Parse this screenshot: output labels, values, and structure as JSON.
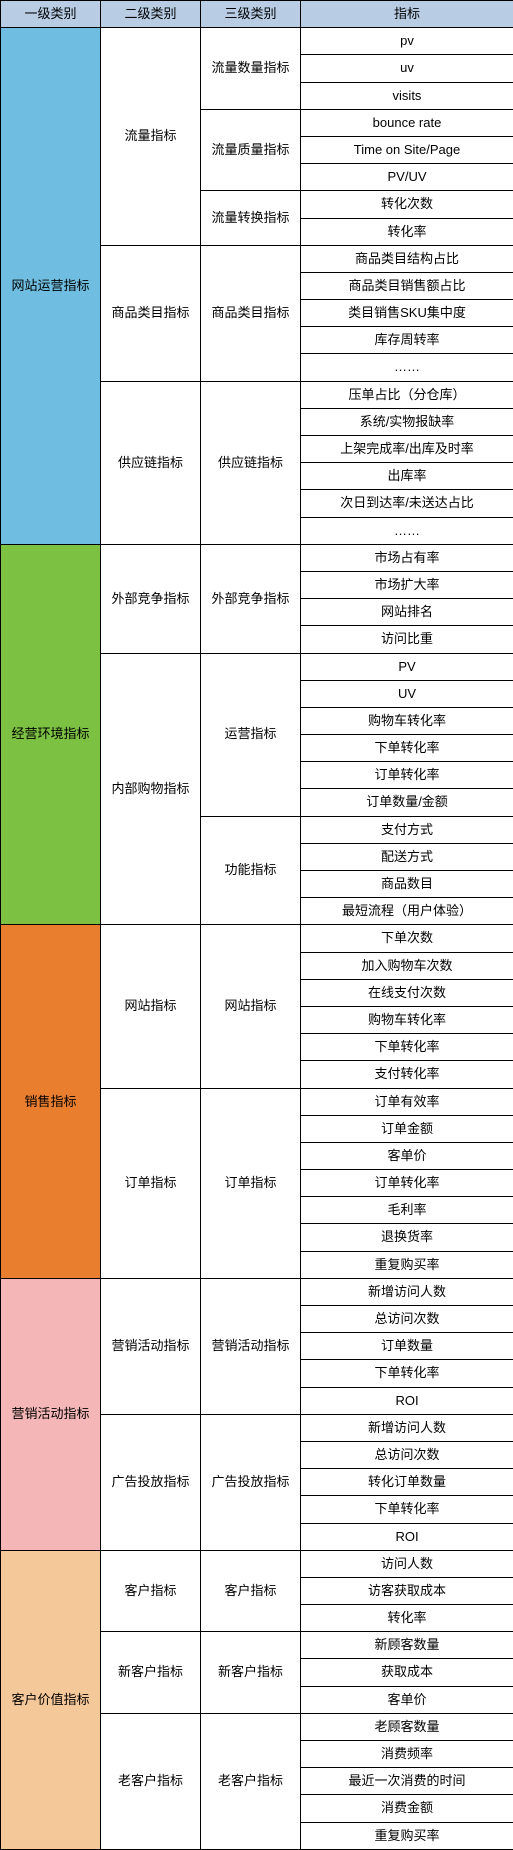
{
  "headers": {
    "c1": "一级类别",
    "c2": "二级类别",
    "c3": "三级类别",
    "c4": "指标"
  },
  "colors": {
    "header_bg": "#b8cce4",
    "c1_bg": "#6fbde0",
    "c2_bg": "#7cc142",
    "c3_bg": "#e97e2e",
    "c4_bg": "#f4b6b6",
    "c5_bg": "#f5c89a",
    "cell_bg": "#ffffff"
  },
  "categories": [
    {
      "name": "网站运营指标",
      "color_key": "c1_bg",
      "subs": [
        {
          "name": "流量指标",
          "thirds": [
            {
              "name": "流量数量指标",
              "metrics": [
                "pv",
                "uv",
                "visits"
              ]
            },
            {
              "name": "流量质量指标",
              "metrics": [
                "bounce rate",
                "Time on Site/Page",
                "PV/UV"
              ]
            },
            {
              "name": "流量转换指标",
              "metrics": [
                "转化次数",
                "转化率"
              ]
            }
          ]
        },
        {
          "name": "商品类目指标",
          "thirds": [
            {
              "name": "商品类目指标",
              "metrics": [
                "商品类目结构占比",
                "商品类目销售额占比",
                "类目销售SKU集中度",
                "库存周转率",
                "……"
              ]
            }
          ]
        },
        {
          "name": "供应链指标",
          "thirds": [
            {
              "name": "供应链指标",
              "metrics": [
                "压单占比（分仓库）",
                "系统/实物报缺率",
                "上架完成率/出库及时率",
                "出库率",
                "次日到达率/未送达占比",
                "……"
              ]
            }
          ]
        }
      ]
    },
    {
      "name": "经营环境指标",
      "color_key": "c2_bg",
      "subs": [
        {
          "name": "外部竞争指标",
          "thirds": [
            {
              "name": "外部竞争指标",
              "metrics": [
                "市场占有率",
                "市场扩大率",
                "网站排名",
                "访问比重"
              ]
            }
          ]
        },
        {
          "name": "内部购物指标",
          "thirds": [
            {
              "name": "运营指标",
              "metrics": [
                "PV",
                "UV",
                "购物车转化率",
                "下单转化率",
                "订单转化率",
                "订单数量/金额"
              ]
            },
            {
              "name": "功能指标",
              "metrics": [
                "支付方式",
                "配送方式",
                "商品数目",
                "最短流程（用户体验）"
              ]
            }
          ]
        }
      ]
    },
    {
      "name": "销售指标",
      "color_key": "c3_bg",
      "subs": [
        {
          "name": "网站指标",
          "thirds": [
            {
              "name": "网站指标",
              "metrics": [
                "下单次数",
                "加入购物车次数",
                "在线支付次数",
                "购物车转化率",
                "下单转化率",
                "支付转化率"
              ]
            }
          ]
        },
        {
          "name": "订单指标",
          "thirds": [
            {
              "name": "订单指标",
              "metrics": [
                "订单有效率",
                "订单金额",
                "客单价",
                "订单转化率",
                "毛利率",
                "退换货率",
                "重复购买率"
              ]
            }
          ]
        }
      ]
    },
    {
      "name": "营销活动指标",
      "color_key": "c4_bg",
      "subs": [
        {
          "name": "营销活动指标",
          "thirds": [
            {
              "name": "营销活动指标",
              "metrics": [
                "新增访问人数",
                "总访问次数",
                "订单数量",
                "下单转化率",
                "ROI"
              ]
            }
          ]
        },
        {
          "name": "广告投放指标",
          "thirds": [
            {
              "name": "广告投放指标",
              "metrics": [
                "新增访问人数",
                "总访问次数",
                "转化订单数量",
                "下单转化率",
                "ROI"
              ]
            }
          ]
        }
      ]
    },
    {
      "name": "客户价值指标",
      "color_key": "c5_bg",
      "subs": [
        {
          "name": "客户指标",
          "thirds": [
            {
              "name": "客户指标",
              "metrics": [
                "访问人数",
                "访客获取成本",
                "转化率"
              ]
            }
          ]
        },
        {
          "name": "新客户指标",
          "thirds": [
            {
              "name": "新客户指标",
              "metrics": [
                "新顾客数量",
                "获取成本",
                "客单价"
              ]
            }
          ]
        },
        {
          "name": "老客户指标",
          "thirds": [
            {
              "name": "老客户指标",
              "metrics": [
                "老顾客数量",
                "消费频率",
                "最近一次消费的时间",
                "消费金额",
                "重复购买率"
              ]
            }
          ]
        }
      ]
    }
  ]
}
